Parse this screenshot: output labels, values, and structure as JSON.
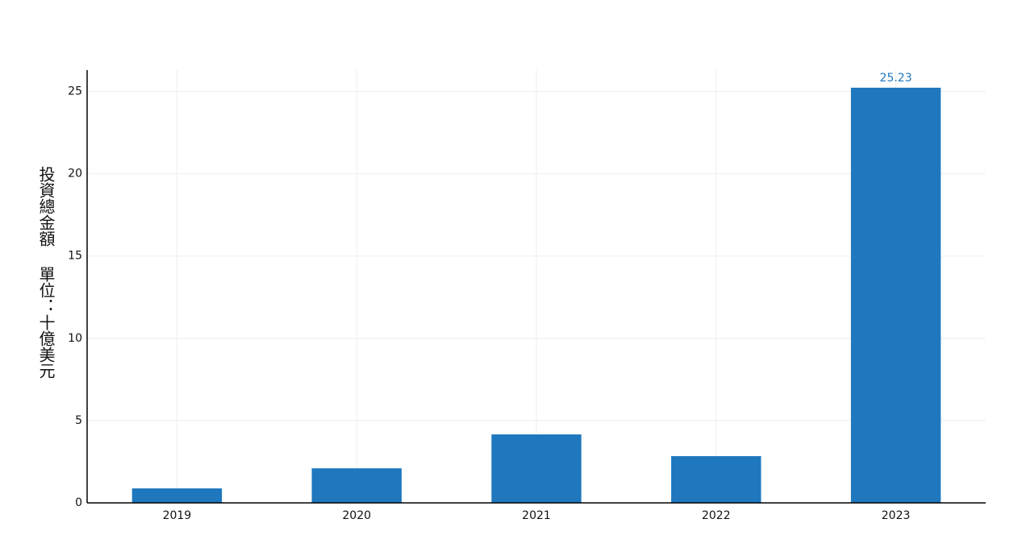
{
  "chart_data": {
    "type": "bar",
    "y_label": "投資總金額 單位：十億美元",
    "categories": [
      "2019",
      "2020",
      "2021",
      "2022",
      "2023"
    ],
    "values": [
      0.88,
      2.1,
      4.16,
      2.84,
      25.23
    ],
    "value_labels": [
      null,
      null,
      null,
      null,
      "25.23"
    ],
    "color": "#1f77bd",
    "ylim": [
      0,
      26.3
    ],
    "yticks": [
      0,
      5,
      10,
      15,
      20,
      25
    ],
    "grid": true
  }
}
